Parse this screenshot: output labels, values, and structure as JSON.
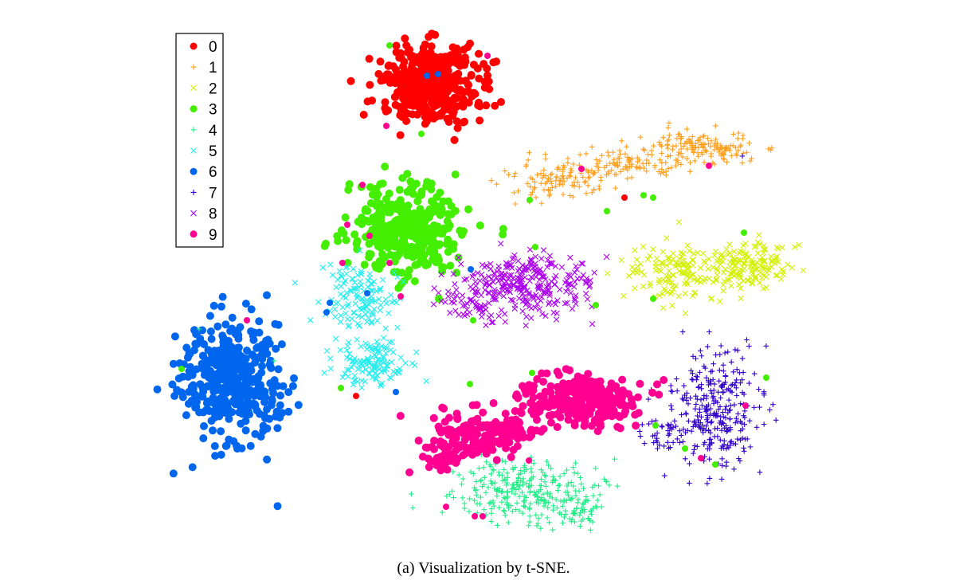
{
  "caption": "(a)  Visualization by t-SNE.",
  "chart_data": {
    "type": "scatter",
    "title": "",
    "xlabel": "",
    "ylabel": "",
    "axes_visible": false,
    "grid": false,
    "legend_position": "top-left",
    "series": [
      {
        "name": "0",
        "color": "#ff0000",
        "marker": "dot",
        "clusters": [
          {
            "center": [
              540,
              105
            ],
            "spread": [
              36,
              28
            ],
            "count": 420
          }
        ]
      },
      {
        "name": "1",
        "color": "#ffa020",
        "marker": "plus",
        "clusters": [
          {
            "center": [
              880,
              185
            ],
            "spread": [
              40,
              12
            ],
            "count": 150
          },
          {
            "center": [
              700,
              222
            ],
            "spread": [
              42,
              14
            ],
            "count": 120
          },
          {
            "center": [
              790,
              205
            ],
            "spread": [
              34,
              10
            ],
            "count": 80
          }
        ]
      },
      {
        "name": "2",
        "color": "#d2f000",
        "marker": "x",
        "clusters": [
          {
            "center": [
              940,
              335
            ],
            "spread": [
              38,
              18
            ],
            "count": 150
          },
          {
            "center": [
              850,
              342
            ],
            "spread": [
              38,
              22
            ],
            "count": 130
          }
        ]
      },
      {
        "name": "3",
        "color": "#44ee00",
        "marker": "dot",
        "clusters": [
          {
            "center": [
              510,
              285
            ],
            "spread": [
              40,
              32
            ],
            "count": 380
          }
        ]
      },
      {
        "name": "4",
        "color": "#22ee88",
        "marker": "plus",
        "clusters": [
          {
            "center": [
              660,
              615
            ],
            "spread": [
              55,
              22
            ],
            "count": 260
          },
          {
            "center": [
              720,
              640
            ],
            "spread": [
              28,
              12
            ],
            "count": 60
          }
        ]
      },
      {
        "name": "5",
        "color": "#22eeee",
        "marker": "x",
        "clusters": [
          {
            "center": [
              450,
              375
            ],
            "spread": [
              30,
              25
            ],
            "count": 130
          },
          {
            "center": [
              465,
              460
            ],
            "spread": [
              25,
              18
            ],
            "count": 120
          }
        ]
      },
      {
        "name": "6",
        "color": "#0066ee",
        "marker": "dot",
        "clusters": [
          {
            "center": [
              290,
              475
            ],
            "spread": [
              36,
              44
            ],
            "count": 420
          }
        ]
      },
      {
        "name": "7",
        "color": "#3300cc",
        "marker": "plus",
        "clusters": [
          {
            "center": [
              895,
              515
            ],
            "spread": [
              34,
              42
            ],
            "count": 300
          },
          {
            "center": [
              830,
              545
            ],
            "spread": [
              14,
              12
            ],
            "count": 30
          }
        ]
      },
      {
        "name": "8",
        "color": "#aa00ee",
        "marker": "x",
        "clusters": [
          {
            "center": [
              665,
              358
            ],
            "spread": [
              48,
              24
            ],
            "count": 280
          },
          {
            "center": [
              590,
              380
            ],
            "spread": [
              28,
              14
            ],
            "count": 50
          }
        ]
      },
      {
        "name": "9",
        "color": "#ff0090",
        "marker": "dot",
        "clusters": [
          {
            "center": [
              730,
              500
            ],
            "spread": [
              40,
              20
            ],
            "count": 280
          },
          {
            "center": [
              610,
              545
            ],
            "spread": [
              38,
              18
            ],
            "count": 160
          },
          {
            "center": [
              560,
              575
            ],
            "spread": [
              16,
              10
            ],
            "count": 40
          }
        ]
      }
    ]
  }
}
